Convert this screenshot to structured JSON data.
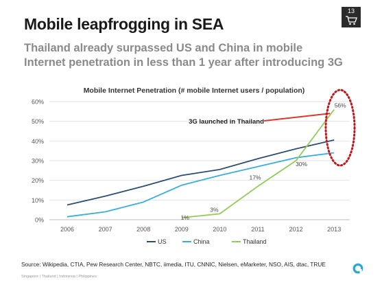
{
  "slide": {
    "title": "Mobile leapfrogging in SEA",
    "subtitle": "Thailand already surpassed US and China in mobile Internet penetration in less than 1 year after introducing 3G",
    "page_number": "13",
    "source": "Source: Wikipedia, CTIA, Pew Research Center, NBTC, iimedia, ITU, CNNIC, Nielsen, eMarketer, NSO, AIS, dtac, TRUE",
    "footer": "Singapore | Thailand | Indonesia | Philippines"
  },
  "colors": {
    "us": "#2a4d73",
    "china": "#35aee0",
    "thailand": "#8fcc52",
    "annotation_arrow": "#d93a2b",
    "highlight_ring": "#c0171c",
    "logo": "#27a6d8"
  },
  "chart_data": {
    "type": "line",
    "title": "Mobile Internet Penetration (# mobile Internet users / population)",
    "x": [
      "2006",
      "2007",
      "2008",
      "2009",
      "2010",
      "2011",
      "2012",
      "2013"
    ],
    "ylim": [
      0,
      60
    ],
    "yticks": [
      "0%",
      "10%",
      "20%",
      "30%",
      "40%",
      "50%",
      "60%"
    ],
    "grid": true,
    "legend": "bottom",
    "series": [
      {
        "name": "US",
        "values": [
          7.5,
          12,
          17,
          22.5,
          25.5,
          31,
          36,
          40.5
        ]
      },
      {
        "name": "China",
        "values": [
          1.5,
          4,
          9,
          17.5,
          22.5,
          27,
          31.5,
          34
        ]
      },
      {
        "name": "Thailand",
        "values": [
          null,
          null,
          null,
          1,
          3,
          17,
          30,
          56
        ]
      }
    ],
    "data_labels": [
      {
        "text": "1%",
        "x": "2009",
        "y": 1
      },
      {
        "text": "3%",
        "x": "2010",
        "y": 3
      },
      {
        "text": "17%",
        "x": "2011",
        "y": 17
      },
      {
        "text": "30%",
        "x": "2012",
        "y": 30
      },
      {
        "text": "56%",
        "x": "2013",
        "y": 56
      }
    ],
    "annotation": {
      "text": "3G launched in Thailand",
      "points_to": {
        "x": "2013",
        "y": 54
      }
    }
  }
}
